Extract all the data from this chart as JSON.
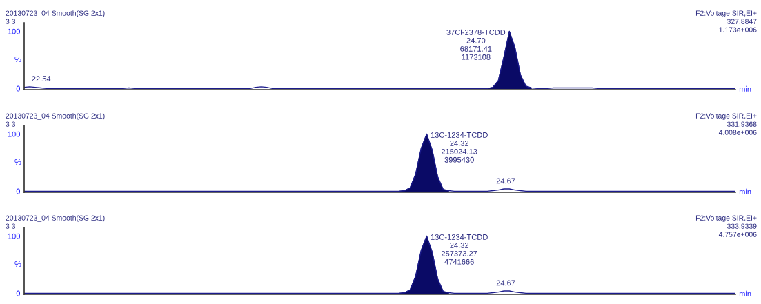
{
  "chart_data": [
    {
      "type": "line",
      "title": "20130723_04 Smooth(SG,2x1)",
      "subtitle": "3 3",
      "xlabel": "min",
      "ylabel": "%",
      "ylim": [
        -2,
        115
      ],
      "yticks": [
        0,
        100
      ],
      "tick_labels": "y",
      "annotations": [
        "F2:Voltage SIR,EI+",
        "327.8847",
        "1.173e+006",
        {
          "text": "22.54",
          "y": 3
        },
        "37Cl-2378-TCDD\n24.70\n68171.41\n1173108"
      ],
      "categories": [
        null,
        null,
        null,
        null,
        null,
        null,
        null,
        null,
        null,
        null,
        null,
        null,
        null,
        null,
        null,
        null,
        null,
        null,
        null,
        null,
        null,
        null,
        null,
        null,
        null,
        null,
        null,
        null,
        null,
        null,
        null,
        null,
        null,
        null,
        null,
        null,
        null,
        null,
        null,
        null,
        null,
        null,
        null,
        null,
        null,
        null,
        null,
        null,
        null,
        null,
        null,
        null,
        null,
        null,
        null,
        null,
        null,
        null,
        null,
        null,
        null,
        null,
        null,
        null,
        null,
        null,
        null,
        null,
        null,
        null,
        null,
        null,
        null,
        null,
        null,
        null,
        null,
        null,
        null,
        null,
        null,
        null,
        null,
        null,
        null,
        null,
        null,
        null,
        null,
        null,
        null,
        null,
        null,
        null,
        null,
        null,
        null,
        null,
        null,
        null,
        null,
        null,
        null,
        null,
        null,
        null,
        null,
        null,
        null,
        null,
        null,
        null,
        null,
        null,
        null,
        null,
        null,
        null,
        null,
        null,
        null,
        null,
        null,
        null,
        null,
        null,
        null,
        null,
        null,
        null
      ],
      "series": [
        {
          "color": "#1c1c8c",
          "values": [
            2,
            3,
            2,
            1,
            0,
            0,
            0,
            0,
            0,
            0,
            0,
            0,
            0,
            0,
            0,
            0,
            0,
            0,
            0,
            1,
            0,
            0,
            0,
            0,
            0,
            0,
            0,
            0,
            0,
            0,
            0,
            0,
            0,
            0,
            0,
            0,
            0,
            0,
            0,
            0,
            0,
            0,
            2,
            3,
            2,
            0,
            0,
            0,
            0,
            0,
            0,
            0,
            0,
            0,
            0,
            0,
            0,
            0,
            0,
            0,
            0,
            0,
            0,
            0,
            0,
            0,
            0,
            0,
            0,
            0,
            0,
            0,
            0,
            0,
            0,
            0,
            0,
            0,
            0,
            0,
            0,
            0,
            0,
            0,
            0,
            2,
            14,
            55,
            100,
            72,
            24,
            4,
            1,
            0,
            0,
            0,
            1,
            1,
            1,
            1,
            1,
            1,
            1,
            1,
            0,
            0,
            0,
            0,
            0,
            0,
            0,
            0,
            0,
            0,
            0,
            0,
            0,
            0,
            0,
            0,
            0,
            0,
            0,
            0,
            0,
            0,
            0,
            0,
            0,
            0
          ]
        },
        {
          "type": "area",
          "color": "#0a0a66",
          "values": [
            null,
            null,
            null,
            null,
            null,
            null,
            null,
            null,
            null,
            null,
            null,
            null,
            null,
            null,
            null,
            null,
            null,
            null,
            null,
            null,
            null,
            null,
            null,
            null,
            null,
            null,
            null,
            null,
            null,
            null,
            null,
            null,
            null,
            null,
            null,
            null,
            null,
            null,
            null,
            null,
            null,
            null,
            null,
            null,
            null,
            null,
            null,
            null,
            null,
            null,
            null,
            null,
            null,
            null,
            null,
            null,
            null,
            null,
            null,
            null,
            null,
            null,
            null,
            null,
            null,
            null,
            null,
            null,
            null,
            null,
            null,
            null,
            null,
            null,
            null,
            null,
            null,
            null,
            null,
            null,
            null,
            null,
            null,
            null,
            0,
            2,
            14,
            55,
            100,
            72,
            24,
            4,
            1,
            null,
            null,
            null,
            null,
            null,
            null,
            null,
            null,
            null,
            null,
            null,
            null,
            null,
            null,
            null,
            null,
            null,
            null,
            null,
            null,
            null,
            null,
            null,
            null,
            null,
            null,
            null,
            null,
            null,
            null,
            null,
            null,
            null,
            null,
            null,
            null,
            null
          ]
        }
      ]
    },
    {
      "type": "line",
      "title": "20130723_04 Smooth(SG,2x1)",
      "subtitle": "3 3",
      "xlabel": "min",
      "ylabel": "%",
      "ylim": [
        -2,
        115
      ],
      "yticks": [
        0,
        100
      ],
      "tick_labels": "y",
      "annotations": [
        "F2:Voltage SIR,EI+",
        "331.9368",
        "4.008e+006",
        "13C-1234-TCDD\n24.32\n215024.13\n3995430",
        {
          "text": "24.67",
          "y": 4
        }
      ],
      "categories": [
        null,
        null,
        null,
        null,
        null,
        null,
        null,
        null,
        null,
        null,
        null,
        null,
        null,
        null,
        null,
        null,
        null,
        null,
        null,
        null,
        null,
        null,
        null,
        null,
        null,
        null,
        null,
        null,
        null,
        null,
        null,
        null,
        null,
        null,
        null,
        null,
        null,
        null,
        null,
        null,
        null,
        null,
        null,
        null,
        null,
        null,
        null,
        null,
        null,
        null,
        null,
        null,
        null,
        null,
        null,
        null,
        null,
        null,
        null,
        null,
        null,
        null,
        null,
        null,
        null,
        null,
        null,
        null,
        null,
        null,
        null,
        null,
        null,
        null,
        null,
        null,
        null,
        null,
        null,
        null,
        null,
        null,
        null,
        null,
        null,
        null,
        null,
        null,
        null,
        null,
        null,
        null,
        null,
        null,
        null,
        null,
        null,
        null,
        null,
        null,
        null,
        null,
        null,
        null,
        null,
        null,
        null,
        null,
        null,
        null,
        null,
        null,
        null,
        null,
        null,
        null,
        null,
        null,
        null,
        null,
        null,
        null,
        null,
        null,
        null,
        null,
        null,
        null,
        null,
        null
      ],
      "series": [
        {
          "color": "#1c1c8c",
          "values": [
            0,
            0,
            0,
            0,
            0,
            0,
            0,
            0,
            0,
            0,
            0,
            0,
            0,
            0,
            0,
            0,
            0,
            0,
            0,
            0,
            0,
            0,
            0,
            0,
            0,
            0,
            0,
            0,
            0,
            0,
            0,
            0,
            0,
            0,
            0,
            0,
            0,
            0,
            0,
            0,
            0,
            0,
            0,
            0,
            0,
            0,
            0,
            0,
            0,
            0,
            0,
            0,
            0,
            0,
            0,
            0,
            0,
            0,
            0,
            0,
            0,
            0,
            0,
            0,
            0,
            0,
            0,
            0,
            0,
            1,
            6,
            30,
            75,
            100,
            72,
            25,
            3,
            1,
            0,
            0,
            0,
            0,
            0,
            0,
            0,
            1,
            2,
            4,
            4,
            2,
            1,
            0,
            0,
            0,
            0,
            0,
            0,
            0,
            0,
            0,
            0,
            0,
            0,
            0,
            0,
            0,
            0,
            0,
            0,
            0,
            0,
            0,
            0,
            0,
            0,
            0,
            0,
            0,
            0,
            0,
            0,
            0,
            0,
            0,
            0,
            0,
            0,
            0,
            0,
            0
          ]
        },
        {
          "type": "area",
          "color": "#0a0a66",
          "values": [
            null,
            null,
            null,
            null,
            null,
            null,
            null,
            null,
            null,
            null,
            null,
            null,
            null,
            null,
            null,
            null,
            null,
            null,
            null,
            null,
            null,
            null,
            null,
            null,
            null,
            null,
            null,
            null,
            null,
            null,
            null,
            null,
            null,
            null,
            null,
            null,
            null,
            null,
            null,
            null,
            null,
            null,
            null,
            null,
            null,
            null,
            null,
            null,
            null,
            null,
            null,
            null,
            null,
            null,
            null,
            null,
            null,
            null,
            null,
            null,
            null,
            null,
            null,
            null,
            null,
            null,
            null,
            null,
            0,
            1,
            6,
            30,
            75,
            100,
            72,
            25,
            3,
            1,
            null,
            null,
            null,
            null,
            null,
            null,
            null,
            null,
            null,
            null,
            null,
            null,
            null,
            null,
            null,
            null,
            null,
            null,
            null,
            null,
            null,
            null,
            null,
            null,
            null,
            null,
            null,
            null,
            null,
            null,
            null,
            null,
            null,
            null,
            null,
            null,
            null,
            null,
            null,
            null,
            null,
            null,
            null,
            null,
            null,
            null,
            null,
            null,
            null,
            null,
            null,
            null
          ]
        }
      ]
    },
    {
      "type": "line",
      "title": "20130723_04 Smooth(SG,2x1)",
      "subtitle": "3 3",
      "xlabel": "min",
      "ylabel": "%",
      "ylim": [
        -2,
        115
      ],
      "yticks": [
        0,
        100
      ],
      "tick_labels": "y",
      "annotations": [
        "F2:Voltage SIR,EI+",
        "333.9339",
        "4.757e+006",
        "13C-1234-TCDD\n24.32\n257373.27\n4741666",
        {
          "text": "24.67",
          "y": 4
        }
      ],
      "categories": [
        null,
        null,
        null,
        null,
        null,
        null,
        null,
        null,
        null,
        null,
        null,
        null,
        null,
        null,
        null,
        null,
        null,
        null,
        null,
        null,
        null,
        null,
        null,
        null,
        null,
        null,
        null,
        null,
        null,
        null,
        null,
        null,
        null,
        null,
        null,
        null,
        null,
        null,
        null,
        null,
        null,
        null,
        null,
        null,
        null,
        null,
        null,
        null,
        null,
        null,
        null,
        null,
        null,
        null,
        null,
        null,
        null,
        null,
        null,
        null,
        null,
        null,
        null,
        null,
        null,
        null,
        null,
        null,
        null,
        null,
        null,
        null,
        null,
        null,
        null,
        null,
        null,
        null,
        null,
        null,
        null,
        null,
        null,
        null,
        null,
        null,
        null,
        null,
        null,
        null,
        null,
        null,
        null,
        null,
        null,
        null,
        null,
        null,
        null,
        null,
        null,
        null,
        null,
        null,
        null,
        null,
        null,
        null,
        null,
        null,
        null,
        null,
        null,
        null,
        null,
        null,
        null,
        null,
        null,
        null,
        null,
        null,
        null,
        null,
        null,
        null,
        null,
        null,
        null,
        null
      ],
      "series": [
        {
          "color": "#1c1c8c",
          "values": [
            0,
            0,
            0,
            0,
            0,
            0,
            0,
            0,
            0,
            0,
            0,
            0,
            0,
            0,
            0,
            0,
            0,
            0,
            0,
            0,
            0,
            0,
            0,
            0,
            0,
            0,
            0,
            0,
            0,
            0,
            0,
            0,
            0,
            0,
            0,
            0,
            0,
            0,
            0,
            0,
            0,
            0,
            0,
            0,
            0,
            0,
            0,
            0,
            0,
            0,
            0,
            0,
            0,
            0,
            0,
            0,
            0,
            0,
            0,
            0,
            0,
            0,
            0,
            0,
            0,
            0,
            0,
            0,
            0,
            1,
            6,
            30,
            75,
            100,
            72,
            25,
            3,
            1,
            0,
            0,
            0,
            0,
            0,
            0,
            0,
            1,
            2,
            4,
            4,
            2,
            1,
            0,
            0,
            0,
            0,
            0,
            0,
            0,
            0,
            0,
            0,
            0,
            0,
            0,
            0,
            0,
            0,
            0,
            0,
            0,
            0,
            0,
            0,
            0,
            0,
            0,
            0,
            0,
            0,
            0,
            0,
            0,
            0,
            0,
            0,
            0,
            0,
            0,
            0,
            0
          ]
        },
        {
          "type": "area",
          "color": "#0a0a66",
          "values": [
            null,
            null,
            null,
            null,
            null,
            null,
            null,
            null,
            null,
            null,
            null,
            null,
            null,
            null,
            null,
            null,
            null,
            null,
            null,
            null,
            null,
            null,
            null,
            null,
            null,
            null,
            null,
            null,
            null,
            null,
            null,
            null,
            null,
            null,
            null,
            null,
            null,
            null,
            null,
            null,
            null,
            null,
            null,
            null,
            null,
            null,
            null,
            null,
            null,
            null,
            null,
            null,
            null,
            null,
            null,
            null,
            null,
            null,
            null,
            null,
            null,
            null,
            null,
            null,
            null,
            null,
            null,
            null,
            0,
            1,
            6,
            30,
            75,
            100,
            72,
            25,
            3,
            1,
            null,
            null,
            null,
            null,
            null,
            null,
            null,
            null,
            null,
            null,
            null,
            null,
            null,
            null,
            null,
            null,
            null,
            null,
            null,
            null,
            null,
            null,
            null,
            null,
            null,
            null,
            null,
            null,
            null,
            null,
            null,
            null,
            null,
            null,
            null,
            null,
            null,
            null,
            null,
            null,
            null,
            null,
            null,
            null,
            null,
            null,
            null,
            null,
            null,
            null,
            null,
            null
          ]
        }
      ]
    }
  ]
}
